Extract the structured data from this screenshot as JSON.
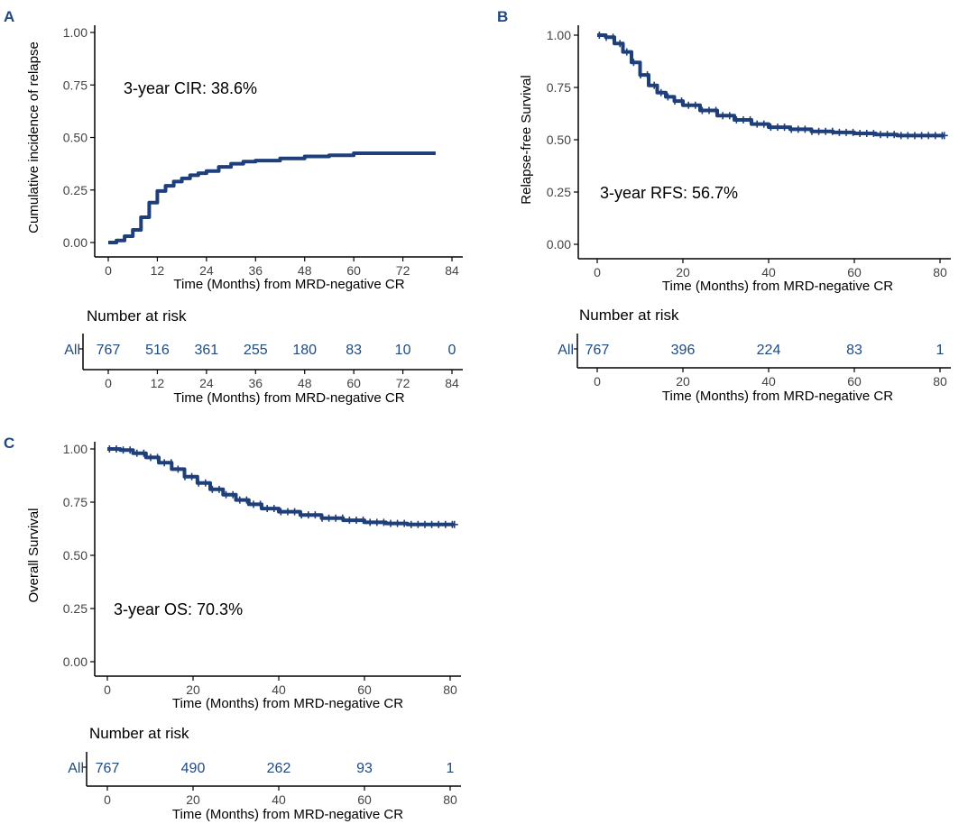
{
  "colors": {
    "curve": "#1f3f7a",
    "letter": "#1f4a80",
    "risk_text": "#1f4a80"
  },
  "chart_data": [
    {
      "panel": "A",
      "type": "line",
      "ylabel": "Cumulative incidence of relapse",
      "xlabel": "Time (Months) from MRD-negative CR",
      "xticks": [
        0,
        12,
        24,
        36,
        48,
        60,
        72,
        84
      ],
      "yticks": [
        "0.00",
        "0.25",
        "0.50",
        "0.75",
        "1.00"
      ],
      "xlim": [
        0,
        84
      ],
      "ylim": [
        0,
        1
      ],
      "annotation": "3-year CIR: 38.6%",
      "series": [
        {
          "name": "All",
          "x": [
            0,
            2,
            4,
            6,
            8,
            10,
            12,
            14,
            16,
            18,
            20,
            22,
            24,
            27,
            30,
            33,
            36,
            42,
            48,
            54,
            60,
            66,
            72,
            80
          ],
          "y": [
            0,
            0.01,
            0.03,
            0.06,
            0.12,
            0.19,
            0.245,
            0.27,
            0.29,
            0.305,
            0.32,
            0.33,
            0.34,
            0.36,
            0.375,
            0.385,
            0.39,
            0.4,
            0.41,
            0.415,
            0.425,
            0.425,
            0.425,
            0.425
          ]
        }
      ],
      "censored": false,
      "risk_table": {
        "title": "Number at risk",
        "strata": "All",
        "times": [
          0,
          12,
          24,
          36,
          48,
          60,
          72,
          84
        ],
        "counts": [
          767,
          516,
          361,
          255,
          180,
          83,
          10,
          0
        ],
        "xticks": [
          0,
          12,
          24,
          36,
          48,
          60,
          72,
          84
        ],
        "xlabel": "Time (Months) from MRD-negative CR"
      }
    },
    {
      "panel": "B",
      "type": "line",
      "ylabel": "Relapse-free Survival",
      "xlabel": "Time (Months) from MRD-negative CR",
      "xticks": [
        0,
        20,
        40,
        60,
        80
      ],
      "yticks": [
        "0.00",
        "0.25",
        "0.50",
        "0.75",
        "1.00"
      ],
      "xlim": [
        0,
        80
      ],
      "ylim": [
        0,
        1
      ],
      "annotation": "3-year RFS: 56.7%",
      "series": [
        {
          "name": "All",
          "x": [
            0,
            2,
            4,
            6,
            8,
            10,
            12,
            14,
            16,
            18,
            20,
            24,
            28,
            32,
            36,
            40,
            45,
            50,
            55,
            60,
            65,
            70,
            75,
            81
          ],
          "y": [
            1.0,
            0.99,
            0.96,
            0.92,
            0.87,
            0.81,
            0.76,
            0.725,
            0.705,
            0.685,
            0.665,
            0.64,
            0.615,
            0.595,
            0.575,
            0.56,
            0.55,
            0.54,
            0.535,
            0.53,
            0.525,
            0.52,
            0.52,
            0.52
          ]
        }
      ],
      "censored": true,
      "risk_table": {
        "title": "Number at risk",
        "strata": "All",
        "times": [
          0,
          20,
          40,
          60,
          80
        ],
        "counts": [
          767,
          396,
          224,
          83,
          1
        ],
        "xticks": [
          0,
          20,
          40,
          60,
          80
        ],
        "xlabel": "Time (Months) from MRD-negative CR"
      }
    },
    {
      "panel": "C",
      "type": "line",
      "ylabel": "Overall Survival",
      "xlabel": "Time (Months) from MRD-negative CR",
      "xticks": [
        0,
        20,
        40,
        60,
        80
      ],
      "yticks": [
        "0.00",
        "0.25",
        "0.50",
        "0.75",
        "1.00"
      ],
      "xlim": [
        0,
        80
      ],
      "ylim": [
        0,
        1
      ],
      "annotation": "3-year OS: 70.3%",
      "series": [
        {
          "name": "All",
          "x": [
            0,
            3,
            6,
            9,
            12,
            15,
            18,
            21,
            24,
            27,
            30,
            33,
            36,
            40,
            45,
            50,
            55,
            60,
            65,
            70,
            75,
            81
          ],
          "y": [
            1.0,
            0.995,
            0.98,
            0.96,
            0.935,
            0.905,
            0.87,
            0.84,
            0.81,
            0.785,
            0.76,
            0.74,
            0.72,
            0.705,
            0.69,
            0.675,
            0.665,
            0.655,
            0.65,
            0.645,
            0.645,
            0.645
          ]
        }
      ],
      "censored": true,
      "risk_table": {
        "title": "Number at risk",
        "strata": "All",
        "times": [
          0,
          20,
          40,
          60,
          80
        ],
        "counts": [
          767,
          490,
          262,
          93,
          1
        ],
        "xticks": [
          0,
          20,
          40,
          60,
          80
        ],
        "xlabel": "Time (Months) from MRD-negative CR"
      }
    }
  ]
}
